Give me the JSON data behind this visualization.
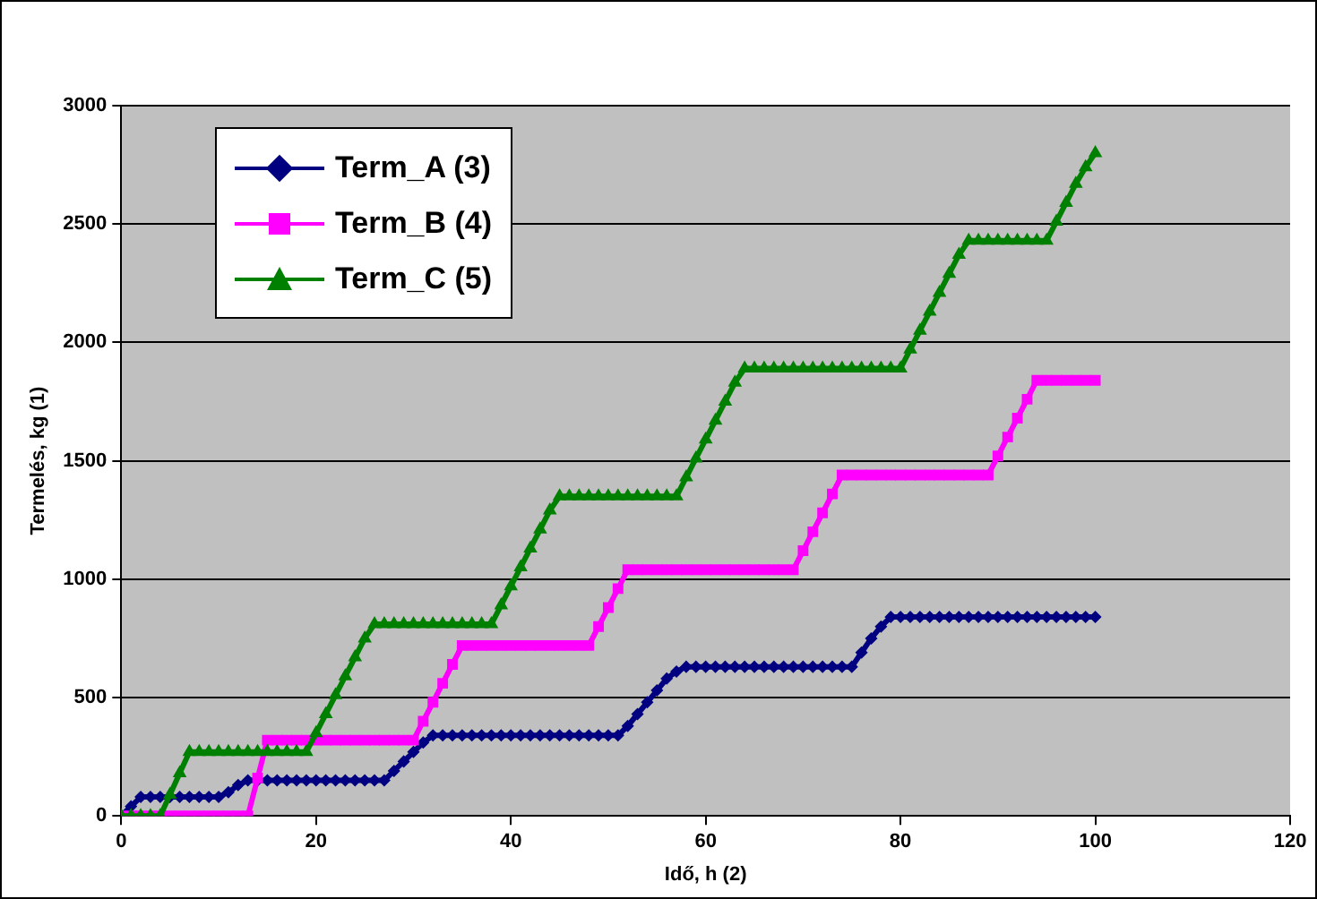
{
  "chart_data": {
    "type": "line",
    "xlabel": "Idő, h (2)",
    "ylabel": "Termelés, kg (1)",
    "xlim": [
      0,
      120
    ],
    "xticks": [
      0,
      20,
      40,
      60,
      80,
      100,
      120
    ],
    "ylim": [
      0,
      3000
    ],
    "yticks": [
      0,
      500,
      1000,
      1500,
      2000,
      2500,
      3000
    ],
    "grid": "y",
    "legend": "top left",
    "line_style": "solid",
    "x": [
      0,
      1,
      2,
      3,
      4,
      5,
      6,
      7,
      8,
      9,
      10,
      11,
      12,
      13,
      14,
      15,
      16,
      17,
      18,
      19,
      20,
      21,
      22,
      23,
      24,
      25,
      26,
      27,
      28,
      29,
      30,
      31,
      32,
      33,
      34,
      35,
      36,
      37,
      38,
      39,
      40,
      41,
      42,
      43,
      44,
      45,
      46,
      47,
      48,
      49,
      50,
      51,
      52,
      53,
      54,
      55,
      56,
      57,
      58,
      59,
      60,
      61,
      62,
      63,
      64,
      65,
      66,
      67,
      68,
      69,
      70,
      71,
      72,
      73,
      74,
      75,
      76,
      77,
      78,
      79,
      80,
      81,
      82,
      83,
      84,
      85,
      86,
      87,
      88,
      89,
      90,
      91,
      92,
      93,
      94,
      95,
      96,
      97,
      98,
      99,
      100
    ],
    "series": [
      {
        "name": "Term_A (3)",
        "color": "#000080",
        "marker": "diamond",
        "values": [
          0,
          40,
          80,
          80,
          80,
          80,
          80,
          80,
          80,
          80,
          80,
          100,
          130,
          150,
          150,
          150,
          150,
          150,
          150,
          150,
          150,
          150,
          150,
          150,
          150,
          150,
          150,
          150,
          190,
          230,
          270,
          310,
          340,
          340,
          340,
          340,
          340,
          340,
          340,
          340,
          340,
          340,
          340,
          340,
          340,
          340,
          340,
          340,
          340,
          340,
          340,
          340,
          380,
          430,
          480,
          530,
          580,
          610,
          630,
          630,
          630,
          630,
          630,
          630,
          630,
          630,
          630,
          630,
          630,
          630,
          630,
          630,
          630,
          630,
          630,
          630,
          690,
          750,
          800,
          840,
          840,
          840,
          840,
          840,
          840,
          840,
          840,
          840,
          840,
          840,
          840,
          840,
          840,
          840,
          840,
          840,
          840,
          840,
          840,
          840,
          840
        ]
      },
      {
        "name": "Term_B (4)",
        "color": "#ff00ff",
        "marker": "square",
        "values": [
          0,
          0,
          0,
          0,
          0,
          0,
          0,
          0,
          0,
          0,
          0,
          0,
          0,
          0,
          160,
          320,
          320,
          320,
          320,
          320,
          320,
          320,
          320,
          320,
          320,
          320,
          320,
          320,
          320,
          320,
          320,
          400,
          480,
          560,
          640,
          720,
          720,
          720,
          720,
          720,
          720,
          720,
          720,
          720,
          720,
          720,
          720,
          720,
          720,
          800,
          880,
          960,
          1040,
          1040,
          1040,
          1040,
          1040,
          1040,
          1040,
          1040,
          1040,
          1040,
          1040,
          1040,
          1040,
          1040,
          1040,
          1040,
          1040,
          1040,
          1120,
          1200,
          1280,
          1360,
          1440,
          1440,
          1440,
          1440,
          1440,
          1440,
          1440,
          1440,
          1440,
          1440,
          1440,
          1440,
          1440,
          1440,
          1440,
          1440,
          1520,
          1600,
          1680,
          1760,
          1840,
          1840,
          1840,
          1840,
          1840,
          1840,
          1840
        ]
      },
      {
        "name": "Term_C (5)",
        "color": "#008000",
        "marker": "triangle",
        "values": [
          0,
          0,
          0,
          0,
          0,
          90,
          180,
          270,
          270,
          270,
          270,
          270,
          270,
          270,
          270,
          270,
          270,
          270,
          270,
          270,
          350,
          430,
          510,
          590,
          670,
          750,
          810,
          810,
          810,
          810,
          810,
          810,
          810,
          810,
          810,
          810,
          810,
          810,
          810,
          890,
          970,
          1050,
          1130,
          1210,
          1290,
          1350,
          1350,
          1350,
          1350,
          1350,
          1350,
          1350,
          1350,
          1350,
          1350,
          1350,
          1350,
          1350,
          1430,
          1510,
          1590,
          1670,
          1750,
          1830,
          1890,
          1890,
          1890,
          1890,
          1890,
          1890,
          1890,
          1890,
          1890,
          1890,
          1890,
          1890,
          1890,
          1890,
          1890,
          1890,
          1890,
          1970,
          2050,
          2130,
          2210,
          2290,
          2370,
          2430,
          2430,
          2430,
          2430,
          2430,
          2430,
          2430,
          2430,
          2430,
          2510,
          2590,
          2670,
          2740,
          2800
        ]
      }
    ]
  }
}
